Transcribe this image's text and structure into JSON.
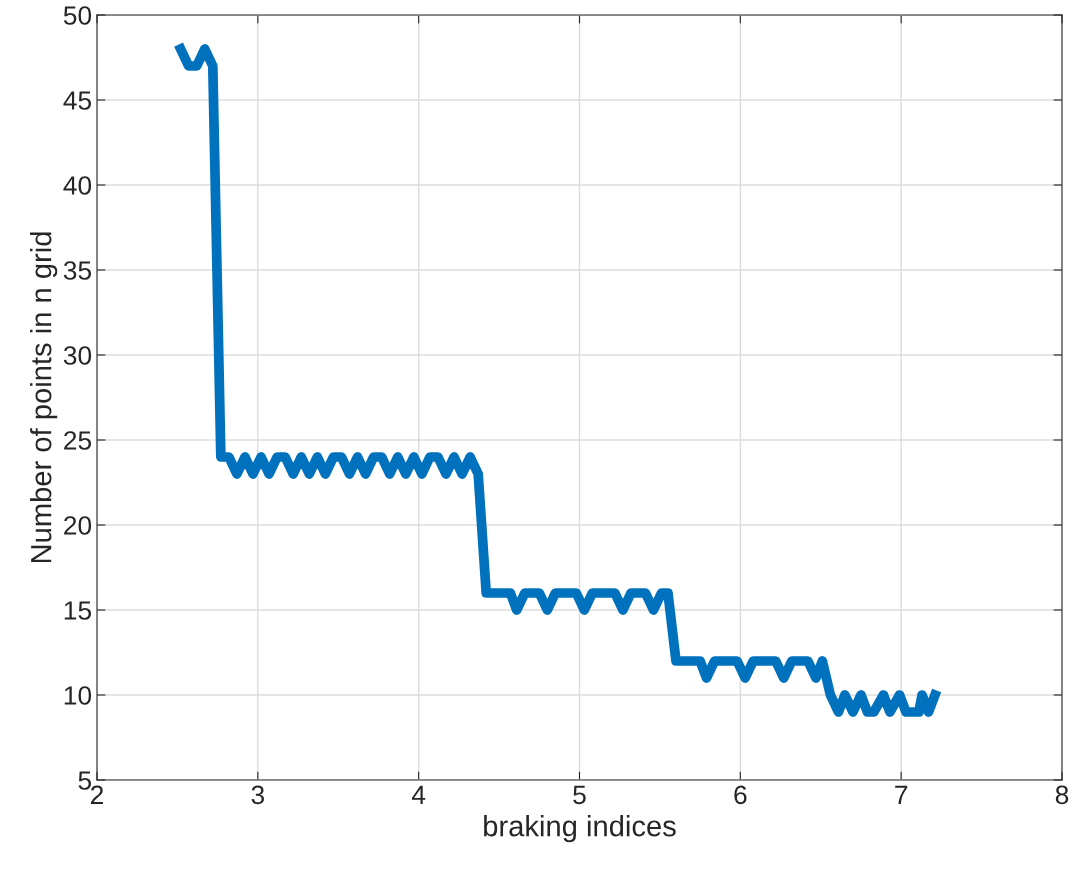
{
  "chart_data": {
    "type": "line",
    "xlabel": "braking indices",
    "ylabel": "Number of points in n grid",
    "xlim": [
      2,
      8
    ],
    "ylim": [
      5,
      50
    ],
    "xticks": [
      2,
      3,
      4,
      5,
      6,
      7,
      8
    ],
    "yticks": [
      5,
      10,
      15,
      20,
      25,
      30,
      35,
      40,
      45,
      50
    ],
    "grid": true,
    "marker": "none",
    "line_style": "solid",
    "series": [
      {
        "color": "#0072bd",
        "x": [
          2.52,
          2.57,
          2.62,
          2.67,
          2.72,
          2.77,
          2.82,
          2.87,
          2.92,
          2.97,
          3.02,
          3.07,
          3.12,
          3.17,
          3.22,
          3.27,
          3.32,
          3.37,
          3.42,
          3.47,
          3.52,
          3.57,
          3.62,
          3.67,
          3.72,
          3.77,
          3.82,
          3.87,
          3.92,
          3.97,
          4.02,
          4.07,
          4.12,
          4.17,
          4.22,
          4.27,
          4.32,
          4.37,
          4.42,
          4.57,
          4.61,
          4.66,
          4.75,
          4.8,
          4.85,
          4.98,
          5.03,
          5.08,
          5.22,
          5.27,
          5.32,
          5.41,
          5.46,
          5.51,
          5.55,
          5.6,
          5.75,
          5.79,
          5.84,
          5.98,
          6.03,
          6.08,
          6.22,
          6.27,
          6.32,
          6.42,
          6.47,
          6.51,
          6.56,
          6.61,
          6.65,
          6.7,
          6.75,
          6.79,
          6.83,
          6.89,
          6.93,
          6.99,
          7.03,
          7.11,
          7.13,
          7.17,
          7.21
        ],
        "values": [
          48,
          47,
          47,
          48,
          47,
          24,
          24,
          23,
          24,
          23,
          24,
          23,
          24,
          24,
          23,
          24,
          23,
          24,
          23,
          24,
          24,
          23,
          24,
          23,
          24,
          24,
          23,
          24,
          23,
          24,
          23,
          24,
          24,
          23,
          24,
          23,
          24,
          23,
          16,
          16,
          15,
          16,
          16,
          15,
          16,
          16,
          15,
          16,
          16,
          15,
          16,
          16,
          15,
          16,
          16,
          12,
          12,
          11,
          12,
          12,
          11,
          12,
          12,
          11,
          12,
          12,
          11,
          12,
          10,
          9,
          10,
          9,
          10,
          9,
          9,
          10,
          9,
          10,
          9,
          9,
          10,
          9,
          10
        ]
      }
    ]
  }
}
